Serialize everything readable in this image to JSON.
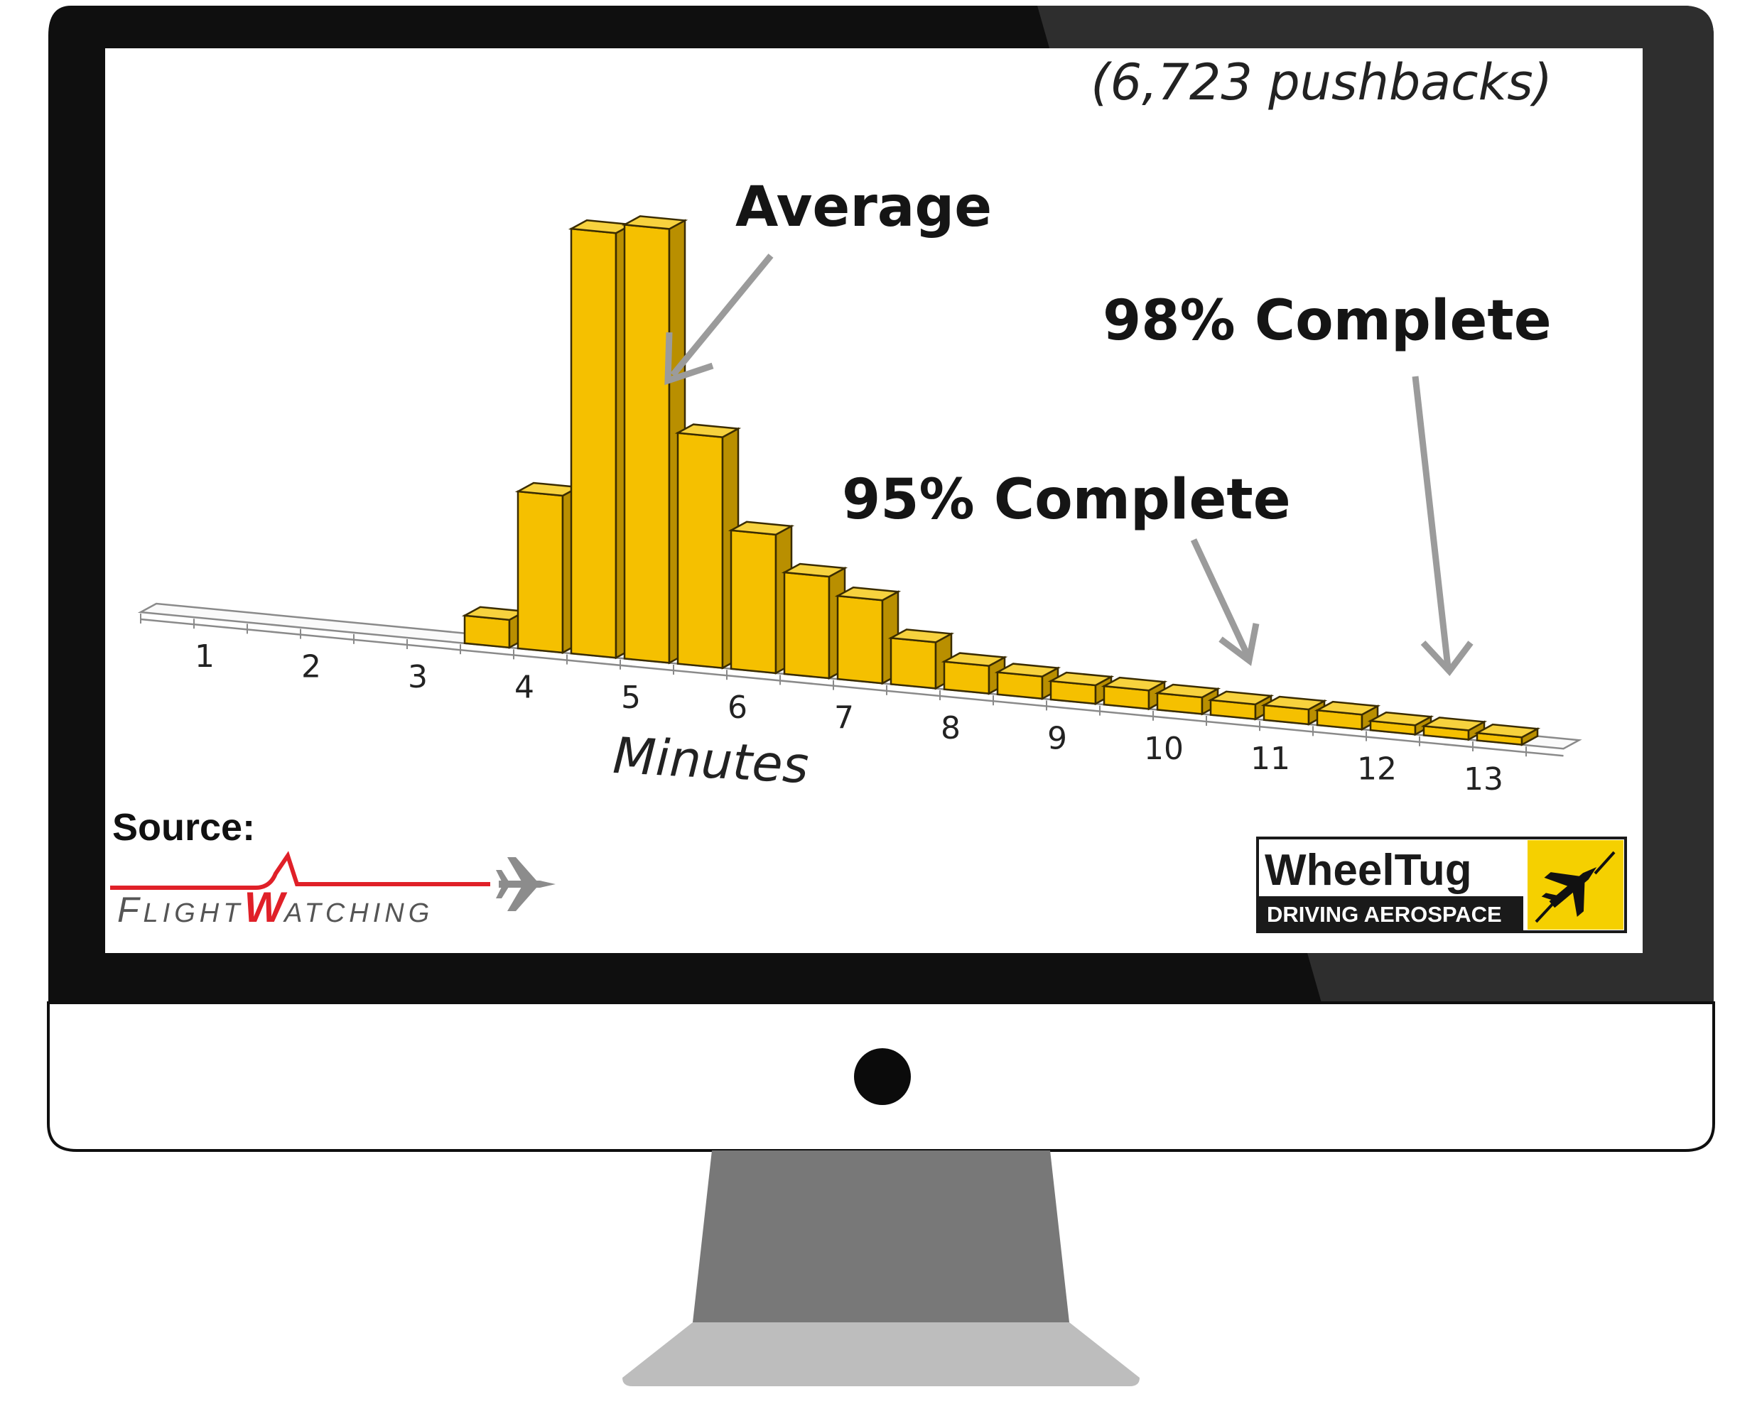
{
  "monitor": {
    "bezel_color": "#0f0f0f",
    "bezel_highlight": "#2e2e2e",
    "chin_color": "#ffffff",
    "stand_color": "#787878",
    "base_color": "#bdbdbd",
    "screen_edge_accent": "#5aa7e0"
  },
  "slide": {
    "note": "(6,723 pushbacks)",
    "annotations": {
      "average": "Average",
      "p95": "95% Complete",
      "p98": "98% Complete"
    },
    "source": {
      "label": "Source:",
      "logo_first": "F",
      "logo_mid": "LIGHT",
      "logo_w": "W",
      "logo_end": "ATCHING",
      "plane_icon": "airplane-icon"
    },
    "brand": {
      "name": "WheelTug",
      "tagline": "DRIVING AEROSPACE",
      "icon": "airplane-takeoff-icon"
    }
  },
  "chart_data": {
    "type": "bar",
    "xlabel": "Minutes",
    "ylabel": "",
    "title": "",
    "x_ticks": [
      "1",
      "2",
      "3",
      "4",
      "5",
      "6",
      "7",
      "8",
      "9",
      "10",
      "11",
      "12",
      "13"
    ],
    "bin_width_minutes": 0.5,
    "bins_start_minutes": [
      3.5,
      4.0,
      4.5,
      5.0,
      5.5,
      6.0,
      6.5,
      7.0,
      7.5,
      8.0,
      8.5,
      9.0,
      9.5,
      10.0,
      10.5,
      11.0,
      11.5,
      12.0,
      12.5,
      13.0
    ],
    "values": [
      1.5,
      8.5,
      23,
      23.5,
      12.5,
      7.5,
      5.5,
      4.5,
      2.5,
      1.5,
      1.2,
      1.0,
      1.0,
      0.9,
      0.8,
      0.8,
      0.8,
      0.5,
      0.5,
      0.4
    ],
    "ylim": [
      0,
      25
    ],
    "grid": false,
    "legend": "none",
    "bar_color": "#f5c000",
    "bar_side_color": "#b98f00",
    "bar_top_color": "#f7d23e"
  }
}
